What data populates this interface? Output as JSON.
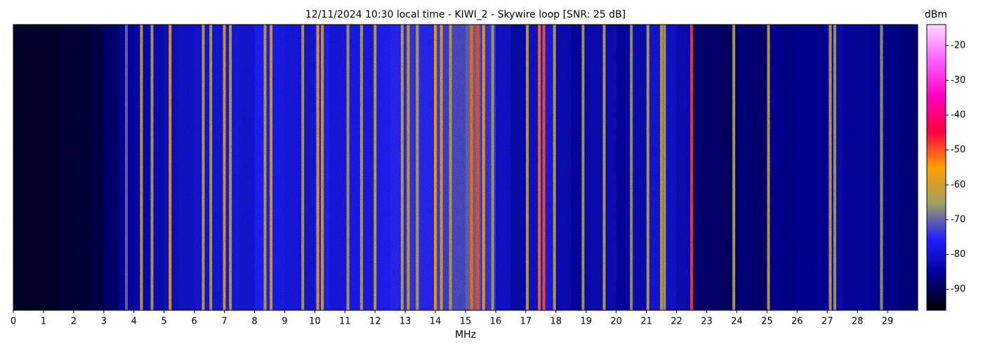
{
  "chart_data": {
    "type": "heatmap",
    "title": "12/11/2024 10:30 local time - KIWI_2 - Skywire loop [SNR: 25 dB]",
    "xlabel": "MHz",
    "colorbar_label": "dBm",
    "xlim": [
      0,
      30
    ],
    "xticks": [
      0,
      1,
      2,
      3,
      4,
      5,
      6,
      7,
      8,
      9,
      10,
      11,
      12,
      13,
      14,
      15,
      16,
      17,
      18,
      19,
      20,
      21,
      22,
      23,
      24,
      25,
      26,
      27,
      28,
      29
    ],
    "clim": [
      -96,
      -14
    ],
    "cticks": [
      -90,
      -80,
      -70,
      -60,
      -50,
      -40,
      -30,
      -20
    ],
    "colormap": [
      "#000000",
      "#000090",
      "#2020ff",
      "#a0a060",
      "#ffa000",
      "#ff0040",
      "#ff00c0",
      "#ff60ff",
      "#ffd8ff"
    ],
    "x": [
      0,
      0.5,
      1,
      1.5,
      2,
      2.5,
      3,
      3.5,
      4,
      4.5,
      5,
      5.5,
      6,
      6.5,
      7,
      7.5,
      8,
      8.5,
      9,
      9.5,
      10,
      10.5,
      11,
      11.5,
      12,
      12.5,
      13,
      13.5,
      14,
      14.5,
      15,
      15.5,
      16,
      16.5,
      17,
      17.5,
      18,
      18.5,
      19,
      19.5,
      20,
      20.5,
      21,
      21.5,
      22,
      22.5,
      23,
      23.5,
      24,
      24.5,
      25,
      25.5,
      26,
      26.5,
      27,
      27.5,
      28,
      28.5,
      29,
      29.5
    ],
    "values": [
      -93,
      -93,
      -93,
      -92,
      -92,
      -91,
      -88,
      -84,
      -83,
      -82,
      -81,
      -80,
      -79,
      -79,
      -78,
      -79,
      -76,
      -77,
      -78,
      -79,
      -76,
      -78,
      -77,
      -77,
      -76,
      -75,
      -74,
      -75,
      -73,
      -72,
      -70,
      -74,
      -80,
      -83,
      -80,
      -78,
      -82,
      -84,
      -82,
      -82,
      -84,
      -82,
      -79,
      -80,
      -82,
      -88,
      -88,
      -89,
      -87,
      -88,
      -85,
      -86,
      -85,
      -85,
      -82,
      -84,
      -84,
      -85,
      -86,
      -87
    ],
    "signals": {
      "x": [
        3.75,
        4.25,
        4.6,
        5.2,
        6.3,
        6.55,
        7.0,
        7.2,
        8.35,
        8.55,
        9.6,
        10.1,
        10.25,
        11.1,
        11.55,
        12.0,
        12.9,
        13.1,
        13.4,
        14.0,
        14.2,
        14.5,
        15.2,
        15.4,
        15.6,
        15.9,
        17.05,
        17.45,
        17.6,
        17.95,
        18.9,
        19.6,
        20.5,
        21.05,
        21.5,
        21.6,
        22.5,
        23.9,
        25.05,
        27.1,
        27.25,
        28.8
      ],
      "values": [
        -70,
        -62,
        -65,
        -58,
        -62,
        -63,
        -60,
        -63,
        -62,
        -60,
        -64,
        -58,
        -60,
        -65,
        -63,
        -60,
        -62,
        -60,
        -63,
        -55,
        -58,
        -63,
        -52,
        -50,
        -55,
        -65,
        -62,
        -52,
        -50,
        -62,
        -65,
        -63,
        -66,
        -63,
        -62,
        -64,
        -48,
        -64,
        -63,
        -62,
        -65,
        -66
      ]
    }
  }
}
